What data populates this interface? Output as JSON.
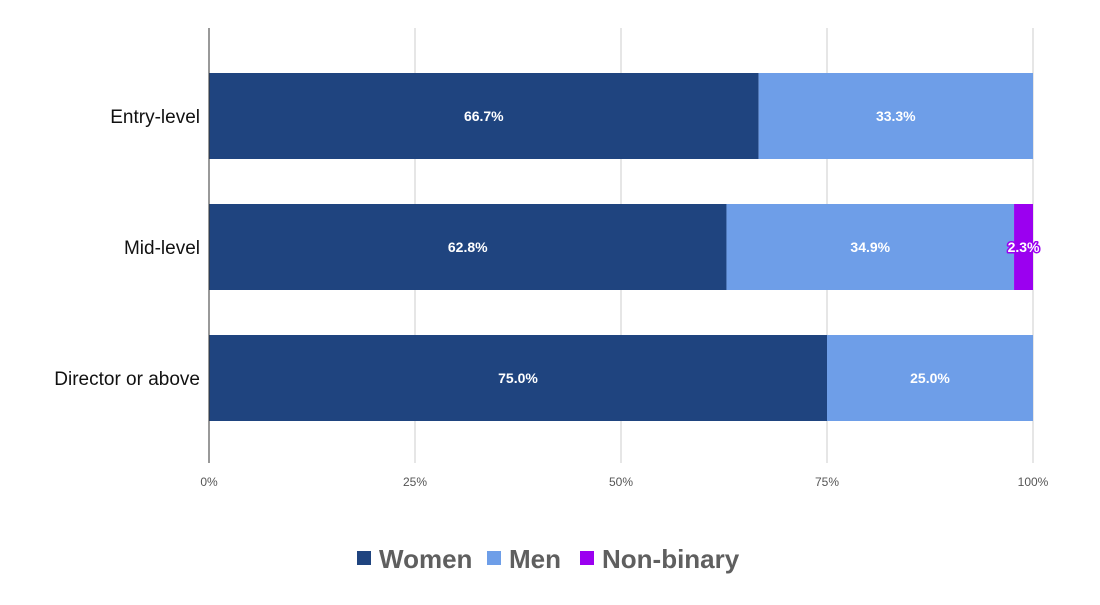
{
  "chart_data": {
    "type": "bar",
    "orientation": "horizontal",
    "stacked": true,
    "categories": [
      "Entry-level",
      "Mid-level",
      "Director or above"
    ],
    "series": [
      {
        "name": "Women",
        "values": [
          66.7,
          62.8,
          75.0
        ],
        "labels": [
          "66.7%",
          "62.8%",
          "75.0%"
        ],
        "color": "#1f447f"
      },
      {
        "name": "Men",
        "values": [
          33.3,
          34.9,
          25.0
        ],
        "labels": [
          "33.3%",
          "34.9%",
          "25.0%"
        ],
        "color": "#6e9ee8"
      },
      {
        "name": "Non-binary",
        "values": [
          0,
          2.3,
          0
        ],
        "labels": [
          "",
          "2.3%",
          ""
        ],
        "color": "#9b00f0"
      }
    ],
    "xlim": [
      0,
      100
    ],
    "x_ticks": [
      "0%",
      "25%",
      "50%",
      "75%",
      "100%"
    ],
    "grid": true,
    "legend_position": "bottom"
  }
}
